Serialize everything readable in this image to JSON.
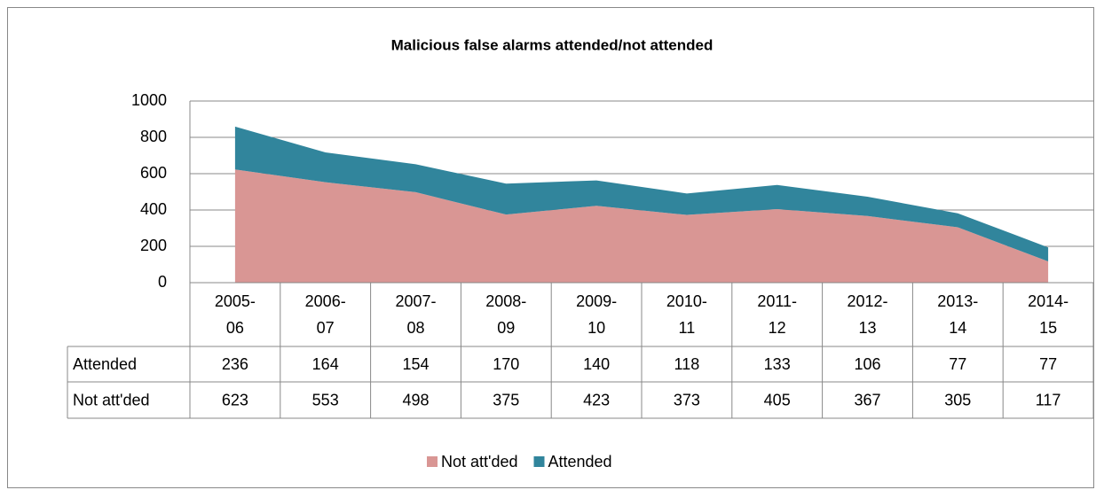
{
  "chart_data": {
    "type": "area",
    "title": "Malicious false alarms attended/not attended",
    "categories": [
      "2005-06",
      "2006-07",
      "2007-08",
      "2008-09",
      "2009-10",
      "2010-11",
      "2011-12",
      "2012-13",
      "2013-14",
      "2014-15"
    ],
    "series": [
      {
        "name": "Not att'ded",
        "color": "#d99694",
        "values": [
          623,
          553,
          498,
          375,
          423,
          373,
          405,
          367,
          305,
          117
        ]
      },
      {
        "name": "Attended",
        "color": "#31859c",
        "values": [
          236,
          164,
          154,
          170,
          140,
          118,
          133,
          106,
          77,
          77
        ]
      }
    ],
    "stacked": true,
    "ylim": [
      0,
      1000
    ],
    "yticks": [
      0,
      200,
      400,
      600,
      800,
      1000
    ],
    "grid": true,
    "legend": "bottom"
  }
}
